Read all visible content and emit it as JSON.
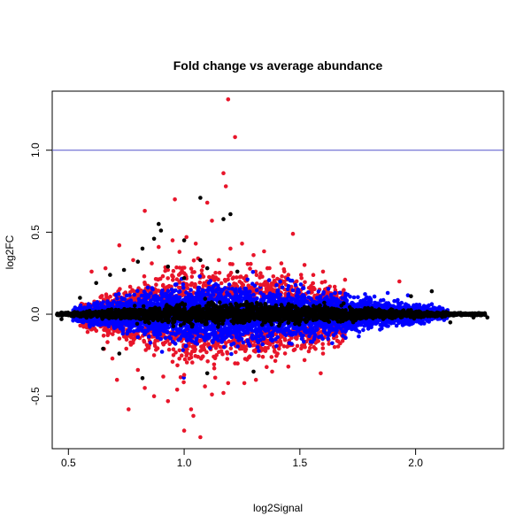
{
  "chart_data": {
    "type": "scatter",
    "title": "Fold change vs average abundance",
    "xlabel": "log2Signal",
    "ylabel": "log2FC",
    "xlim": [
      0.43,
      2.38
    ],
    "ylim": [
      -0.82,
      1.36
    ],
    "xticks": [
      {
        "value": 0.5,
        "label": "0.5"
      },
      {
        "value": 1.0,
        "label": "1.0"
      },
      {
        "value": 1.5,
        "label": "1.5"
      },
      {
        "value": 2.0,
        "label": "2.0"
      }
    ],
    "yticks": [
      {
        "value": -0.5,
        "label": "-0.5"
      },
      {
        "value": 0.0,
        "label": "0.0"
      },
      {
        "value": 0.5,
        "label": "0.5"
      },
      {
        "value": 1.0,
        "label": "1.0"
      }
    ],
    "hline": {
      "y": 1.0,
      "color": "#5555cc"
    },
    "grid": false,
    "colors": {
      "black": "#000000",
      "red": "#e8152a",
      "blue": "#0000ff"
    },
    "series": [
      {
        "values_note": "",
        "color": "#e8152a",
        "points": [
          [
            1.19,
            1.31
          ],
          [
            1.22,
            1.08
          ],
          [
            1.17,
            0.86
          ],
          [
            1.18,
            0.78
          ],
          [
            0.96,
            0.7
          ],
          [
            1.1,
            0.68
          ],
          [
            0.83,
            0.63
          ],
          [
            1.12,
            0.57
          ],
          [
            1.47,
            0.49
          ],
          [
            1.01,
            0.47
          ],
          [
            0.95,
            0.45
          ],
          [
            1.05,
            0.43
          ],
          [
            0.72,
            0.42
          ],
          [
            1.25,
            0.43
          ],
          [
            0.89,
            0.41
          ],
          [
            1.2,
            0.4
          ],
          [
            0.98,
            0.38
          ],
          [
            1.3,
            0.36
          ],
          [
            0.78,
            0.33
          ],
          [
            1.06,
            0.34
          ],
          [
            1.15,
            0.33
          ],
          [
            1.42,
            0.31
          ],
          [
            0.86,
            0.31
          ],
          [
            1.52,
            0.3
          ],
          [
            0.66,
            0.28
          ],
          [
            1.36,
            0.28
          ],
          [
            0.93,
            0.27
          ],
          [
            0.6,
            0.26
          ],
          [
            1.6,
            0.26
          ],
          [
            1.0,
            0.25
          ],
          [
            1.45,
            0.24
          ],
          [
            1.93,
            0.2
          ],
          [
            1.33,
            0.18
          ],
          [
            0.76,
            -0.58
          ],
          [
            1.07,
            -0.75
          ],
          [
            1.0,
            -0.71
          ],
          [
            1.04,
            -0.62
          ],
          [
            1.03,
            -0.58
          ],
          [
            0.93,
            -0.53
          ],
          [
            0.87,
            -0.5
          ],
          [
            1.12,
            -0.49
          ],
          [
            1.17,
            -0.48
          ],
          [
            0.97,
            -0.46
          ],
          [
            0.83,
            -0.45
          ],
          [
            1.09,
            -0.44
          ],
          [
            1.26,
            -0.42
          ],
          [
            1.19,
            -0.42
          ],
          [
            0.71,
            -0.4
          ],
          [
            1.31,
            -0.4
          ],
          [
            0.91,
            -0.38
          ],
          [
            1.0,
            -0.37
          ],
          [
            1.38,
            -0.35
          ],
          [
            1.59,
            -0.36
          ],
          [
            0.8,
            -0.34
          ],
          [
            1.13,
            -0.33
          ],
          [
            1.45,
            -0.32
          ],
          [
            1.22,
            -0.3
          ],
          [
            0.95,
            -0.29
          ],
          [
            1.52,
            -0.28
          ],
          [
            0.69,
            -0.27
          ],
          [
            1.06,
            -0.26
          ],
          [
            1.34,
            -0.26
          ],
          [
            0.87,
            -0.25
          ],
          [
            1.6,
            -0.24
          ],
          [
            1.15,
            -0.23
          ],
          [
            0.98,
            -0.22
          ],
          [
            1.41,
            -0.21
          ],
          [
            1.25,
            -0.21
          ],
          [
            0.75,
            -0.21
          ],
          [
            1.65,
            -0.2
          ]
        ]
      },
      {
        "color": "#000000",
        "points": [
          [
            1.07,
            0.71
          ],
          [
            1.2,
            0.61
          ],
          [
            0.89,
            0.55
          ],
          [
            1.17,
            0.58
          ],
          [
            0.9,
            0.51
          ],
          [
            0.87,
            0.46
          ],
          [
            1.0,
            0.45
          ],
          [
            0.82,
            0.4
          ],
          [
            1.07,
            0.33
          ],
          [
            0.8,
            0.32
          ],
          [
            1.1,
            0.28
          ],
          [
            0.93,
            0.29
          ],
          [
            1.23,
            0.26
          ],
          [
            0.74,
            0.27
          ],
          [
            0.68,
            0.24
          ],
          [
            1.0,
            0.22
          ],
          [
            0.62,
            0.19
          ],
          [
            2.07,
            0.14
          ],
          [
            0.55,
            0.1
          ],
          [
            1.98,
            0.11
          ],
          [
            0.72,
            -0.24
          ],
          [
            0.65,
            -0.21
          ],
          [
            1.3,
            -0.35
          ],
          [
            1.1,
            -0.36
          ],
          [
            0.82,
            -0.39
          ],
          [
            2.15,
            -0.05
          ],
          [
            2.25,
            -0.02
          ],
          [
            2.31,
            -0.02
          ],
          [
            0.47,
            0.01
          ],
          [
            0.47,
            -0.03
          ]
        ]
      }
    ]
  }
}
